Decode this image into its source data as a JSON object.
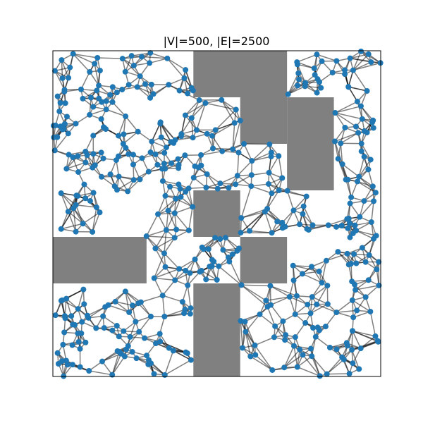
{
  "title": "|V|=500, |E|=2500",
  "colors": {
    "background": "#ffffff",
    "frame": "#000000",
    "obstacle": "#808080",
    "node": "#1f77b4",
    "edge": "#000000"
  },
  "graph": {
    "vertex_count": 500,
    "edge_count": 2500,
    "bounds": [
      0,
      0,
      7,
      7
    ],
    "obstacles": [
      [
        3,
        6,
        2,
        1
      ],
      [
        4,
        5,
        1,
        1
      ],
      [
        5,
        4,
        1,
        2
      ],
      [
        3,
        3,
        1,
        1
      ],
      [
        0,
        2,
        2,
        1
      ],
      [
        4,
        2,
        1,
        1
      ],
      [
        3,
        0,
        1,
        2
      ]
    ]
  }
}
